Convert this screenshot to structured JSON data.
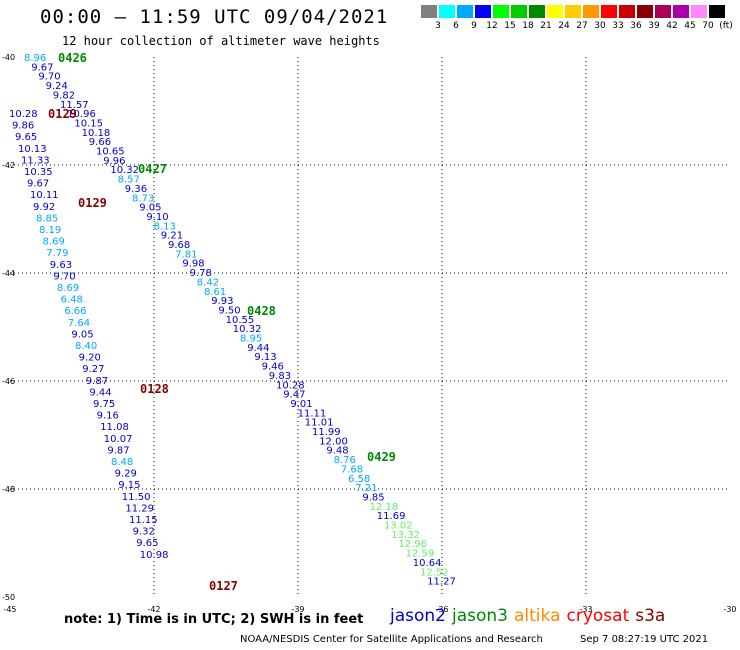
{
  "title": "00:00 – 11:59 UTC 09/04/2021",
  "subtitle": "12 hour collection of altimeter wave heights",
  "colorbar": {
    "colors": [
      "#808080",
      "#00ffff",
      "#00aaff",
      "#0000ff",
      "#00ff00",
      "#00cc00",
      "#008800",
      "#ffff00",
      "#ffcc00",
      "#ff9900",
      "#ff0000",
      "#cc0000",
      "#880000",
      "#aa0055",
      "#aa00aa",
      "#ff88ff",
      "#000000"
    ],
    "labels": [
      "3",
      "6",
      "9",
      "12",
      "15",
      "18",
      "21",
      "24",
      "27",
      "30",
      "33",
      "36",
      "39",
      "42",
      "45",
      "70",
      "(ft)"
    ]
  },
  "map": {
    "lat_range": [
      -50,
      -40
    ],
    "lon_range": [
      -45,
      -30
    ],
    "lat_ticks": [
      "-40",
      "-42",
      "-44",
      "-46",
      "-48",
      "-50"
    ],
    "lon_ticks": [
      "-45",
      "-42",
      "-39",
      "-36",
      "-33",
      "-30"
    ],
    "gridlines": "dotted"
  },
  "satellite_colors": {
    "jason2": "#0000cc",
    "jason3": "#008800",
    "altika": "#ff8800",
    "cryosat": "#ff0000",
    "s3a": "#880000",
    "jason2_light": "#00aaff"
  },
  "chart_data": {
    "type": "scatter",
    "tracks": [
      {
        "time_label": "0426",
        "time_color": "#008800",
        "points": [
          {
            "v": "8.96",
            "c": "#00aaff"
          },
          {
            "v": "9.67",
            "c": "#0000cc"
          },
          {
            "v": "9.70",
            "c": "#0000cc"
          },
          {
            "v": "9.24",
            "c": "#0000cc"
          },
          {
            "v": "9.82",
            "c": "#0000cc"
          },
          {
            "v": "11.57",
            "c": "#0000cc"
          },
          {
            "v": "10.96",
            "c": "#0000cc"
          },
          {
            "v": "10.15",
            "c": "#0000cc"
          },
          {
            "v": "10.18",
            "c": "#0000cc"
          },
          {
            "v": "9.66",
            "c": "#0000cc"
          },
          {
            "v": "10.65",
            "c": "#0000cc"
          },
          {
            "v": "9.96",
            "c": "#0000cc"
          },
          {
            "v": "10.32",
            "c": "#0000cc"
          },
          {
            "v": "8.57",
            "c": "#00aaff"
          },
          {
            "v": "9.36",
            "c": "#0000cc"
          },
          {
            "v": "8.73",
            "c": "#00aaff"
          },
          {
            "v": "9.05",
            "c": "#0000cc"
          },
          {
            "v": "9.10",
            "c": "#0000cc"
          },
          {
            "v": "8.13",
            "c": "#00aaff"
          },
          {
            "v": "9.21",
            "c": "#0000cc"
          },
          {
            "v": "9.68",
            "c": "#0000cc"
          },
          {
            "v": "7.81",
            "c": "#00aaff"
          },
          {
            "v": "9.98",
            "c": "#0000cc"
          },
          {
            "v": "9.78",
            "c": "#0000cc"
          },
          {
            "v": "8.42",
            "c": "#00aaff"
          },
          {
            "v": "8.61",
            "c": "#00aaff"
          },
          {
            "v": "9.93",
            "c": "#0000cc"
          },
          {
            "v": "9.50",
            "c": "#0000cc"
          },
          {
            "v": "10.55",
            "c": "#0000cc"
          },
          {
            "v": "10.32",
            "c": "#0000cc"
          },
          {
            "v": "8.95",
            "c": "#00aaff"
          },
          {
            "v": "9.44",
            "c": "#0000cc"
          },
          {
            "v": "9.13",
            "c": "#0000cc"
          },
          {
            "v": "9.46",
            "c": "#0000cc"
          },
          {
            "v": "9.83",
            "c": "#0000cc"
          },
          {
            "v": "10.28",
            "c": "#0000cc"
          },
          {
            "v": "9.47",
            "c": "#0000cc"
          },
          {
            "v": "9.01",
            "c": "#0000cc"
          },
          {
            "v": "11.11",
            "c": "#0000cc"
          },
          {
            "v": "11.01",
            "c": "#0000cc"
          },
          {
            "v": "11.99",
            "c": "#0000cc"
          },
          {
            "v": "12.00",
            "c": "#0000cc"
          },
          {
            "v": "9.48",
            "c": "#0000cc"
          },
          {
            "v": "8.76",
            "c": "#00aaff"
          },
          {
            "v": "7.68",
            "c": "#00aaff"
          },
          {
            "v": "6.58",
            "c": "#00aaff"
          },
          {
            "v": "7.21",
            "c": "#00aaff"
          },
          {
            "v": "9.85",
            "c": "#0000cc"
          },
          {
            "v": "12.18",
            "c": "#66ee66"
          },
          {
            "v": "11.69",
            "c": "#0000cc"
          },
          {
            "v": "13.02",
            "c": "#66ee66"
          },
          {
            "v": "13.32",
            "c": "#66ee66"
          },
          {
            "v": "12.96",
            "c": "#66ee66"
          },
          {
            "v": "12.59",
            "c": "#66ee66"
          },
          {
            "v": "10.64",
            "c": "#0000cc"
          },
          {
            "v": "12.52",
            "c": "#66ee66"
          },
          {
            "v": "11.27",
            "c": "#0000cc"
          }
        ]
      },
      {
        "time_label": "0129",
        "time_color": "#880000",
        "points": [
          {
            "v": "10.28",
            "c": "#0000cc"
          },
          {
            "v": "9.86",
            "c": "#0000cc"
          },
          {
            "v": "9.65",
            "c": "#0000cc"
          },
          {
            "v": "10.13",
            "c": "#0000cc"
          },
          {
            "v": "11.33",
            "c": "#0000cc"
          },
          {
            "v": "10.35",
            "c": "#0000cc"
          },
          {
            "v": "9.67",
            "c": "#0000cc"
          },
          {
            "v": "10.11",
            "c": "#0000cc"
          },
          {
            "v": "9.92",
            "c": "#0000cc"
          },
          {
            "v": "8.85",
            "c": "#00aaff"
          },
          {
            "v": "8.19",
            "c": "#00aaff"
          },
          {
            "v": "8.69",
            "c": "#00aaff"
          },
          {
            "v": "7.79",
            "c": "#00aaff"
          },
          {
            "v": "9.63",
            "c": "#0000cc"
          },
          {
            "v": "9.70",
            "c": "#0000cc"
          },
          {
            "v": "8.69",
            "c": "#00aaff"
          },
          {
            "v": "6.48",
            "c": "#00aaff"
          },
          {
            "v": "6.66",
            "c": "#00aaff"
          },
          {
            "v": "7.64",
            "c": "#00aaff"
          },
          {
            "v": "9.05",
            "c": "#0000cc"
          },
          {
            "v": "8.40",
            "c": "#00aaff"
          },
          {
            "v": "9.20",
            "c": "#0000cc"
          },
          {
            "v": "9.27",
            "c": "#0000cc"
          },
          {
            "v": "9.87",
            "c": "#0000cc"
          },
          {
            "v": "9.44",
            "c": "#0000cc"
          },
          {
            "v": "9.75",
            "c": "#0000cc"
          },
          {
            "v": "9.16",
            "c": "#0000cc"
          },
          {
            "v": "11.08",
            "c": "#0000cc"
          },
          {
            "v": "10.07",
            "c": "#0000cc"
          },
          {
            "v": "9.87",
            "c": "#0000cc"
          },
          {
            "v": "8.48",
            "c": "#00aaff"
          },
          {
            "v": "9.29",
            "c": "#0000cc"
          },
          {
            "v": "9.15",
            "c": "#0000cc"
          },
          {
            "v": "11.50",
            "c": "#0000cc"
          },
          {
            "v": "11.29",
            "c": "#0000cc"
          },
          {
            "v": "11.15",
            "c": "#0000cc"
          },
          {
            "v": "9.32",
            "c": "#0000cc"
          },
          {
            "v": "9.65",
            "c": "#0000cc"
          },
          {
            "v": "10.98",
            "c": "#0000cc"
          }
        ]
      }
    ],
    "time_markers": [
      {
        "label": "0426",
        "color": "#008800"
      },
      {
        "label": "0129",
        "color": "#880000"
      },
      {
        "label": "0427",
        "color": "#008800"
      },
      {
        "label": "0129",
        "color": "#880000"
      },
      {
        "label": "0428",
        "color": "#008800"
      },
      {
        "label": "0128",
        "color": "#880000"
      },
      {
        "label": "0429",
        "color": "#008800"
      },
      {
        "label": "0127",
        "color": "#880000"
      }
    ]
  },
  "footer": {
    "note": "note:  1) Time is in UTC; 2) SWH is in feet",
    "legend": [
      {
        "name": "jason2",
        "color": "#0000cc"
      },
      {
        "name": "jason3",
        "color": "#008800"
      },
      {
        "name": "altika",
        "color": "#ff8800"
      },
      {
        "name": "cryosat",
        "color": "#ff0000"
      },
      {
        "name": "s3a",
        "color": "#880000"
      }
    ],
    "credit": "NOAA/NESDIS Center for Satellite Applications and Research",
    "timestamp": "Sep  7 08:27:19 UTC 2021"
  }
}
